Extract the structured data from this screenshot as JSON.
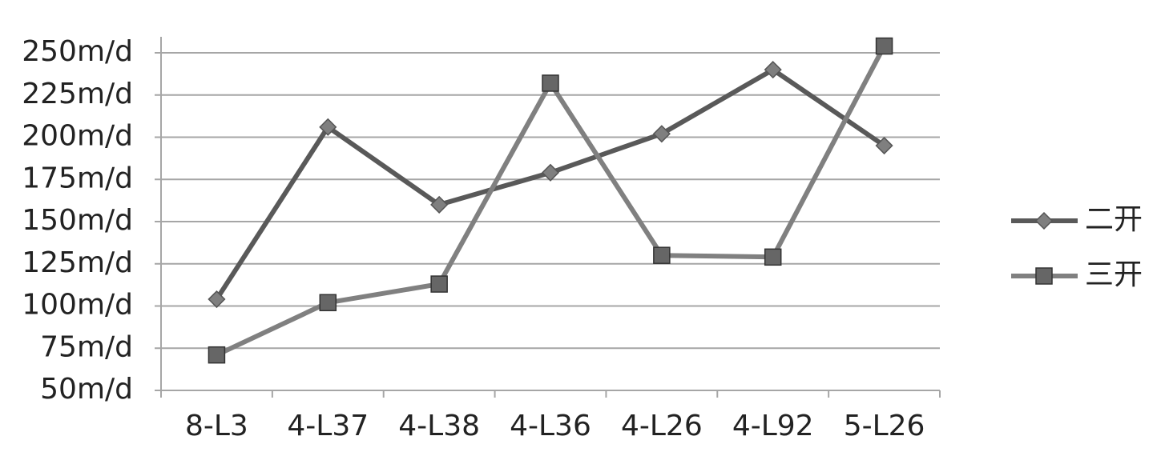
{
  "chart_data": {
    "type": "line",
    "categories": [
      "8-L3",
      "4-L37",
      "4-L38",
      "4-L36",
      "4-L26",
      "4-L92",
      "5-L26"
    ],
    "series": [
      {
        "name": "二开",
        "color": "#595959",
        "marker": "diamond",
        "marker_color": "#7f7f7f",
        "values": [
          104,
          206,
          160,
          179,
          202,
          240,
          195
        ]
      },
      {
        "name": "三开",
        "color": "#808080",
        "marker": "square",
        "marker_color": "#666666",
        "values": [
          71,
          102,
          113,
          232,
          130,
          129,
          254
        ]
      }
    ],
    "ylim": [
      50,
      250
    ],
    "yticks": [
      {
        "value": 50,
        "label": "50m/d"
      },
      {
        "value": 75,
        "label": "75m/d"
      },
      {
        "value": 100,
        "label": "100m/d"
      },
      {
        "value": 125,
        "label": "125m/d"
      },
      {
        "value": 150,
        "label": "150m/d"
      },
      {
        "value": 175,
        "label": "175m/d"
      },
      {
        "value": 200,
        "label": "200m/d"
      },
      {
        "value": 225,
        "label": "225m/d"
      },
      {
        "value": 250,
        "label": "250m/d"
      }
    ],
    "grid": true,
    "legend": "right"
  }
}
